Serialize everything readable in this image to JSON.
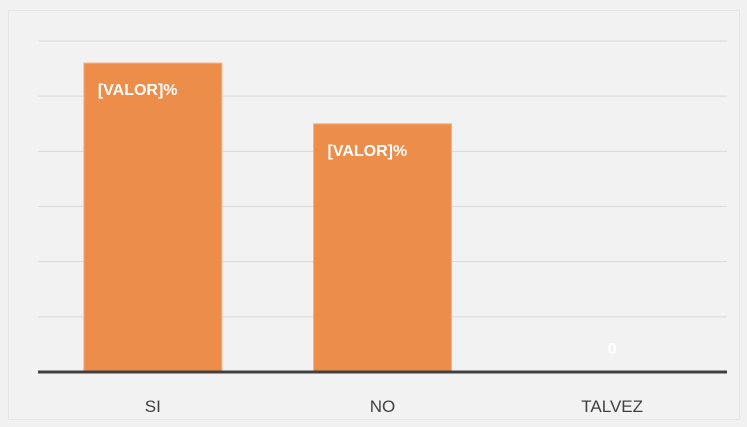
{
  "chart_data": {
    "type": "bar",
    "title": "",
    "xlabel": "",
    "ylabel": "",
    "categories": [
      "SI",
      "NO",
      "TALVEZ"
    ],
    "values": [
      56,
      45,
      0
    ],
    "data_labels": [
      "[VALOR]%",
      "[VALOR]%",
      "0"
    ],
    "ylim": [
      0,
      60
    ],
    "grid": true,
    "legend": "none",
    "colors": {
      "bar": "#ed8d4a",
      "bar_edge": "#f5b384",
      "gridline": "#d9d9d9",
      "axis_line": "#404040",
      "tick_label": "#404040",
      "data_label": "#ffffff"
    }
  }
}
